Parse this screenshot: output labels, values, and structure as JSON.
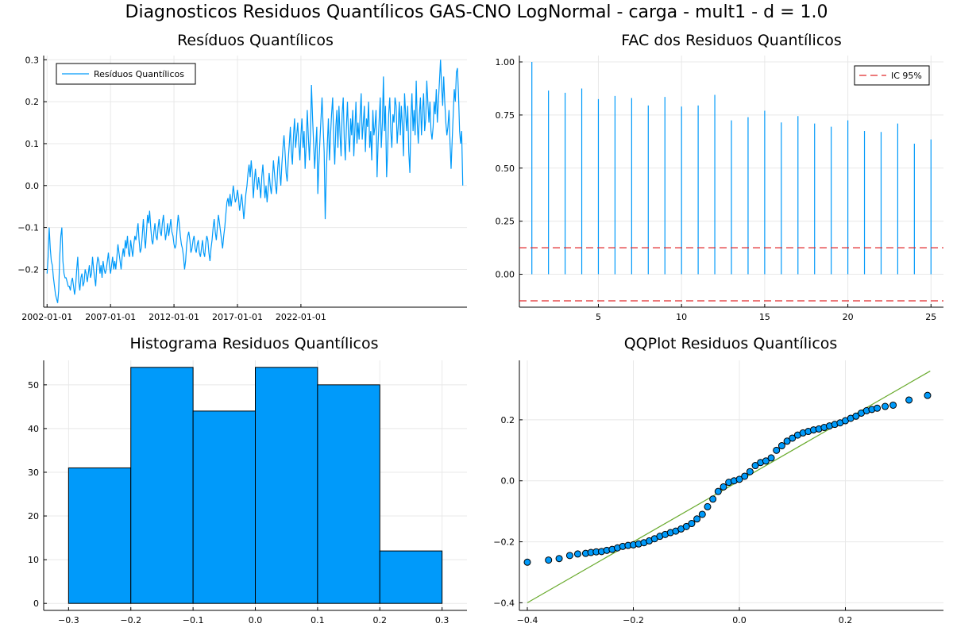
{
  "title": "Diagnosticos Residuos  Quantílicos GAS-CNO LogNormal - carga - mult1 - d = 1.0",
  "colors": {
    "series": "#009AFA",
    "ci": "#E1292B",
    "qqline": "#6AAB2E",
    "bar_edge": "#000000"
  },
  "chart_data": [
    {
      "type": "line",
      "title": "Resíduos  Quantílicos",
      "legend": "top-left",
      "series": [
        {
          "name": "Resíduos Quantílicos"
        }
      ],
      "x_start": "2002-01",
      "x_step": "month",
      "xticks": [
        "2002-01-01",
        "2007-01-01",
        "2012-01-01",
        "2017-01-01",
        "2022-01-01"
      ],
      "ylim": [
        -0.29,
        0.31
      ],
      "yticks": [
        -0.2,
        -0.1,
        0.0,
        0.1,
        0.2,
        0.3
      ],
      "ytick_labels": [
        "−0.2",
        "−0.1",
        "0.0",
        "0.1",
        "0.2",
        "0.3"
      ],
      "y": [
        -0.21,
        -0.17,
        -0.1,
        -0.15,
        -0.18,
        -0.19,
        -0.22,
        -0.24,
        -0.26,
        -0.27,
        -0.28,
        -0.25,
        -0.17,
        -0.12,
        -0.1,
        -0.18,
        -0.21,
        -0.22,
        -0.22,
        -0.23,
        -0.24,
        -0.24,
        -0.25,
        -0.23,
        -0.22,
        -0.24,
        -0.26,
        -0.24,
        -0.2,
        -0.17,
        -0.23,
        -0.25,
        -0.22,
        -0.21,
        -0.24,
        -0.23,
        -0.2,
        -0.21,
        -0.23,
        -0.21,
        -0.19,
        -0.22,
        -0.21,
        -0.17,
        -0.2,
        -0.22,
        -0.24,
        -0.19,
        -0.17,
        -0.18,
        -0.21,
        -0.19,
        -0.22,
        -0.18,
        -0.2,
        -0.21,
        -0.2,
        -0.18,
        -0.16,
        -0.19,
        -0.21,
        -0.19,
        -0.17,
        -0.2,
        -0.18,
        -0.2,
        -0.17,
        -0.14,
        -0.16,
        -0.18,
        -0.2,
        -0.17,
        -0.15,
        -0.17,
        -0.13,
        -0.15,
        -0.12,
        -0.16,
        -0.17,
        -0.13,
        -0.15,
        -0.17,
        -0.14,
        -0.12,
        -0.13,
        -0.11,
        -0.09,
        -0.13,
        -0.16,
        -0.15,
        -0.12,
        -0.08,
        -0.12,
        -0.15,
        -0.11,
        -0.07,
        -0.09,
        -0.06,
        -0.1,
        -0.13,
        -0.14,
        -0.11,
        -0.09,
        -0.12,
        -0.13,
        -0.1,
        -0.08,
        -0.11,
        -0.12,
        -0.09,
        -0.07,
        -0.1,
        -0.13,
        -0.11,
        -0.09,
        -0.12,
        -0.1,
        -0.08,
        -0.11,
        -0.12,
        -0.14,
        -0.15,
        -0.14,
        -0.1,
        -0.07,
        -0.09,
        -0.12,
        -0.14,
        -0.15,
        -0.17,
        -0.2,
        -0.18,
        -0.14,
        -0.12,
        -0.11,
        -0.13,
        -0.16,
        -0.15,
        -0.13,
        -0.12,
        -0.15,
        -0.16,
        -0.14,
        -0.13,
        -0.16,
        -0.17,
        -0.15,
        -0.13,
        -0.16,
        -0.17,
        -0.14,
        -0.12,
        -0.13,
        -0.16,
        -0.18,
        -0.15,
        -0.13,
        -0.1,
        -0.08,
        -0.11,
        -0.13,
        -0.1,
        -0.07,
        -0.09,
        -0.11,
        -0.13,
        -0.15,
        -0.12,
        -0.1,
        -0.07,
        -0.04,
        -0.03,
        -0.05,
        -0.02,
        -0.05,
        -0.03,
        0.0,
        -0.02,
        -0.04,
        -0.03,
        -0.01,
        -0.03,
        -0.06,
        -0.04,
        -0.02,
        -0.05,
        -0.08,
        -0.05,
        -0.02,
        0.0,
        0.03,
        0.05,
        0.02,
        0.06,
        0.03,
        -0.03,
        0.01,
        0.04,
        0.01,
        -0.01,
        0.02,
        0.0,
        -0.03,
        0.02,
        0.05,
        0.01,
        -0.03,
        0.0,
        -0.04,
        -0.01,
        0.03,
        0.0,
        -0.02,
        0.01,
        0.06,
        0.03,
        0.0,
        -0.02,
        0.04,
        0.07,
        0.03,
        0.0,
        0.05,
        0.09,
        0.12,
        0.08,
        0.03,
        0.01,
        0.06,
        0.1,
        0.14,
        0.08,
        0.05,
        0.12,
        0.16,
        0.09,
        0.12,
        0.15,
        0.1,
        0.06,
        0.12,
        0.16,
        0.09,
        0.13,
        0.04,
        0.1,
        0.18,
        0.12,
        0.06,
        0.12,
        0.24,
        0.16,
        0.1,
        0.04,
        0.09,
        0.14,
        -0.02,
        0.05,
        0.11,
        0.16,
        0.21,
        0.14,
        0.08,
        -0.08,
        0.03,
        0.1,
        0.16,
        0.06,
        0.12,
        0.17,
        0.21,
        0.11,
        0.05,
        0.14,
        0.18,
        0.09,
        0.19,
        0.12,
        0.07,
        0.17,
        0.21,
        0.11,
        0.06,
        0.14,
        0.2,
        0.12,
        0.08,
        0.16,
        0.12,
        0.18,
        0.07,
        0.13,
        0.2,
        0.1,
        0.15,
        0.11,
        0.17,
        0.22,
        0.11,
        0.15,
        0.19,
        0.08,
        0.16,
        0.14,
        0.2,
        0.09,
        0.13,
        0.06,
        0.18,
        0.12,
        0.14,
        0.18,
        0.02,
        0.1,
        0.16,
        0.21,
        0.09,
        0.15,
        0.26,
        0.13,
        0.19,
        0.02,
        0.08,
        0.17,
        0.21,
        0.13,
        0.09,
        0.17,
        0.15,
        0.21,
        0.19,
        0.1,
        0.14,
        0.2,
        0.12,
        0.19,
        0.14,
        0.07,
        0.22,
        0.17,
        0.13,
        0.19,
        0.08,
        0.03,
        0.16,
        0.22,
        0.13,
        0.18,
        0.12,
        0.25,
        0.15,
        0.1,
        0.17,
        0.21,
        0.12,
        0.18,
        0.22,
        0.13,
        0.16,
        0.25,
        0.2,
        0.15,
        0.2,
        0.13,
        0.11,
        0.14,
        0.2,
        0.17,
        0.23,
        0.15,
        0.2,
        0.25,
        0.3,
        0.24,
        0.19,
        0.26,
        0.2,
        0.15,
        0.12,
        0.14,
        0.18,
        0.1,
        0.04,
        0.11,
        0.17,
        0.23,
        0.2,
        0.27,
        0.28,
        0.22,
        0.13,
        0.1,
        0.13,
        0.0
      ]
    },
    {
      "type": "bar",
      "title": "FAC dos Residuos Quantílicos",
      "legend": "top-right",
      "series": [
        {
          "name": "IC 95%"
        }
      ],
      "x": [
        1,
        2,
        3,
        4,
        5,
        6,
        7,
        8,
        9,
        10,
        11,
        12,
        13,
        14,
        15,
        16,
        17,
        18,
        19,
        20,
        21,
        22,
        23,
        24,
        25
      ],
      "values": [
        1.0,
        0.865,
        0.855,
        0.875,
        0.825,
        0.84,
        0.83,
        0.795,
        0.835,
        0.79,
        0.795,
        0.845,
        0.725,
        0.74,
        0.77,
        0.715,
        0.745,
        0.71,
        0.695,
        0.725,
        0.675,
        0.67,
        0.71,
        0.615,
        0.635
      ],
      "ci": [
        0.125,
        -0.125
      ],
      "xlim": [
        0.25,
        25.75
      ],
      "ylim": [
        -0.155,
        1.03
      ],
      "xticks": [
        5,
        10,
        15,
        20,
        25
      ],
      "yticks": [
        0.0,
        0.25,
        0.5,
        0.75,
        1.0
      ],
      "ytick_labels": [
        "0.00",
        "0.25",
        "0.50",
        "0.75",
        "1.00"
      ]
    },
    {
      "type": "bar",
      "title": "Histograma Residuos Quantílicos",
      "bins": [
        [
          -0.3,
          -0.2
        ],
        [
          -0.2,
          -0.1
        ],
        [
          -0.1,
          0.0
        ],
        [
          0.0,
          0.1
        ],
        [
          0.1,
          0.2
        ],
        [
          0.2,
          0.3
        ]
      ],
      "values": [
        31,
        54,
        44,
        54,
        50,
        12
      ],
      "xlim": [
        -0.34,
        0.34
      ],
      "ylim": [
        -1.6,
        55.6
      ],
      "xticks": [
        -0.3,
        -0.2,
        -0.1,
        0.0,
        0.1,
        0.2,
        0.3
      ],
      "xtick_labels": [
        "−0.3",
        "−0.2",
        "−0.1",
        "0.0",
        "0.1",
        "0.2",
        "0.3"
      ],
      "yticks": [
        0,
        10,
        20,
        30,
        40,
        50
      ],
      "ytick_labels": [
        "0",
        "10",
        "20",
        "30",
        "40",
        "50"
      ]
    },
    {
      "type": "scatter",
      "title": "QQPlot Residuos Quantílicos",
      "xlim": [
        -0.415,
        0.385
      ],
      "ylim": [
        -0.425,
        0.395
      ],
      "xticks": [
        -0.4,
        -0.2,
        0.0,
        0.2
      ],
      "xtick_labels": [
        "−0.4",
        "−0.2",
        "0.0",
        "0.2"
      ],
      "yticks": [
        -0.4,
        -0.2,
        0.0,
        0.2
      ],
      "ytick_labels": [
        "−0.4",
        "−0.2",
        "0.0",
        "0.2"
      ],
      "reference_line": [
        [
          -0.4,
          -0.4
        ],
        [
          0.36,
          0.36
        ]
      ],
      "points": [
        [
          -0.4,
          -0.267
        ],
        [
          -0.36,
          -0.26
        ],
        [
          -0.34,
          -0.255
        ],
        [
          -0.32,
          -0.245
        ],
        [
          -0.305,
          -0.24
        ],
        [
          -0.29,
          -0.238
        ],
        [
          -0.28,
          -0.235
        ],
        [
          -0.27,
          -0.233
        ],
        [
          -0.26,
          -0.232
        ],
        [
          -0.25,
          -0.228
        ],
        [
          -0.24,
          -0.225
        ],
        [
          -0.23,
          -0.22
        ],
        [
          -0.22,
          -0.215
        ],
        [
          -0.21,
          -0.212
        ],
        [
          -0.2,
          -0.21
        ],
        [
          -0.19,
          -0.207
        ],
        [
          -0.18,
          -0.203
        ],
        [
          -0.17,
          -0.197
        ],
        [
          -0.16,
          -0.19
        ],
        [
          -0.15,
          -0.182
        ],
        [
          -0.14,
          -0.176
        ],
        [
          -0.13,
          -0.17
        ],
        [
          -0.12,
          -0.165
        ],
        [
          -0.11,
          -0.158
        ],
        [
          -0.1,
          -0.15
        ],
        [
          -0.09,
          -0.14
        ],
        [
          -0.08,
          -0.125
        ],
        [
          -0.07,
          -0.11
        ],
        [
          -0.06,
          -0.085
        ],
        [
          -0.05,
          -0.06
        ],
        [
          -0.04,
          -0.035
        ],
        [
          -0.03,
          -0.02
        ],
        [
          -0.02,
          -0.005
        ],
        [
          -0.01,
          0.0
        ],
        [
          0.0,
          0.005
        ],
        [
          0.01,
          0.015
        ],
        [
          0.02,
          0.03
        ],
        [
          0.03,
          0.05
        ],
        [
          0.04,
          0.06
        ],
        [
          0.05,
          0.065
        ],
        [
          0.06,
          0.075
        ],
        [
          0.07,
          0.1
        ],
        [
          0.08,
          0.115
        ],
        [
          0.09,
          0.13
        ],
        [
          0.1,
          0.14
        ],
        [
          0.11,
          0.15
        ],
        [
          0.12,
          0.157
        ],
        [
          0.13,
          0.162
        ],
        [
          0.14,
          0.167
        ],
        [
          0.15,
          0.17
        ],
        [
          0.16,
          0.175
        ],
        [
          0.17,
          0.18
        ],
        [
          0.18,
          0.185
        ],
        [
          0.19,
          0.19
        ],
        [
          0.2,
          0.197
        ],
        [
          0.21,
          0.205
        ],
        [
          0.22,
          0.212
        ],
        [
          0.23,
          0.222
        ],
        [
          0.24,
          0.23
        ],
        [
          0.25,
          0.234
        ],
        [
          0.26,
          0.238
        ],
        [
          0.275,
          0.244
        ],
        [
          0.29,
          0.248
        ],
        [
          0.32,
          0.265
        ],
        [
          0.355,
          0.28
        ]
      ]
    }
  ]
}
